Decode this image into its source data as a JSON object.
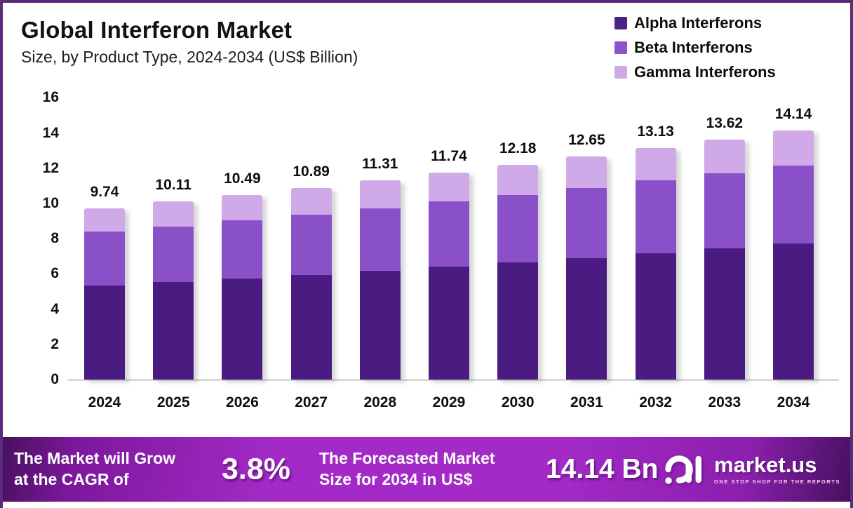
{
  "header": {
    "title": "Global Interferon Market",
    "subtitle": "Size, by Product Type, 2024-2034 (US$ Billion)"
  },
  "legend": [
    {
      "label": "Alpha Interferons",
      "color": "#4a2185"
    },
    {
      "label": "Beta Interferons",
      "color": "#8a55c8"
    },
    {
      "label": "Gamma Interferons",
      "color": "#cfa9e6"
    }
  ],
  "chart_data": {
    "type": "bar",
    "stacked": true,
    "title": "Global Interferon Market",
    "subtitle": "Size, by Product Type, 2024-2034 (US$ Billion)",
    "unit": "US$ Billion",
    "categories": [
      "2024",
      "2025",
      "2026",
      "2027",
      "2028",
      "2029",
      "2030",
      "2031",
      "2032",
      "2033",
      "2034"
    ],
    "series": [
      {
        "name": "Alpha Interferons",
        "color": "#4a1b80",
        "values": [
          5.32,
          5.52,
          5.73,
          5.95,
          6.18,
          6.41,
          6.65,
          6.91,
          7.17,
          7.44,
          7.72
        ]
      },
      {
        "name": "Beta Interferons",
        "color": "#8a50c7",
        "values": [
          3.07,
          3.18,
          3.3,
          3.43,
          3.56,
          3.7,
          3.84,
          3.98,
          4.14,
          4.29,
          4.45
        ]
      },
      {
        "name": "Gamma Interferons",
        "color": "#d0a9e8",
        "values": [
          1.35,
          1.41,
          1.46,
          1.51,
          1.57,
          1.63,
          1.69,
          1.76,
          1.82,
          1.89,
          1.97
        ]
      }
    ],
    "totals": [
      9.74,
      10.11,
      10.49,
      10.89,
      11.31,
      11.74,
      12.18,
      12.65,
      13.13,
      13.62,
      14.14
    ],
    "total_labels": [
      "9.74",
      "10.11",
      "10.49",
      "10.89",
      "11.31",
      "11.74",
      "12.18",
      "12.65",
      "13.13",
      "13.62",
      "14.14"
    ],
    "xlabel": "",
    "ylabel": "",
    "ylim": [
      0,
      16
    ],
    "yticks": [
      0,
      2,
      4,
      6,
      8,
      10,
      12,
      14,
      16
    ],
    "grid": false,
    "legend_position": "top-right"
  },
  "banner": {
    "cagr_label_line1": "The Market will Grow",
    "cagr_label_line2": "at the CAGR of",
    "cagr_value": "3.8%",
    "forecast_label_line1": "The Forecasted Market",
    "forecast_label_line2": "Size for 2034 in US$",
    "forecast_value": "14.14 Bn",
    "accent_color": "#a32ac6"
  },
  "logo": {
    "name": "market.us",
    "tagline": "ONE STOP SHOP FOR THE REPORTS",
    "mark": "marketus-spiral-icon"
  }
}
